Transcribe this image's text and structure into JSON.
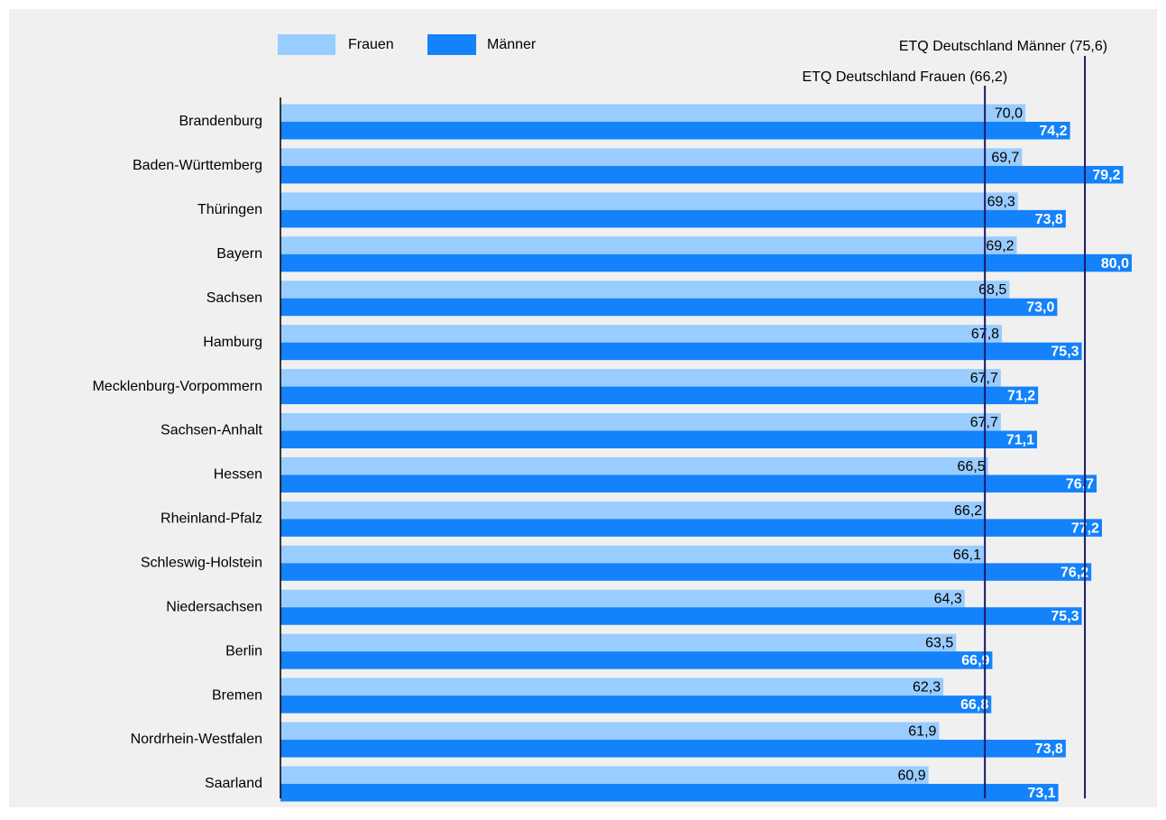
{
  "chart_data": {
    "type": "bar",
    "orientation": "horizontal",
    "categories": [
      "Brandenburg",
      "Baden-Württemberg",
      "Thüringen",
      "Bayern",
      "Sachsen",
      "Hamburg",
      "Mecklenburg-Vorpommern",
      "Sachsen-Anhalt",
      "Hessen",
      "Rheinland-Pfalz",
      "Schleswig-Holstein",
      "Niedersachsen",
      "Berlin",
      "Bremen",
      "Nordrhein-Westfalen",
      "Saarland"
    ],
    "series": [
      {
        "name": "Frauen",
        "color": "#99ccff",
        "values": [
          70.0,
          69.7,
          69.3,
          69.2,
          68.5,
          67.8,
          67.7,
          67.7,
          66.5,
          66.2,
          66.1,
          64.3,
          63.5,
          62.3,
          61.9,
          60.9
        ],
        "value_labels": [
          "70,0",
          "69,7",
          "69,3",
          "69,2",
          "68,5",
          "67,8",
          "67,7",
          "67,7",
          "66,5",
          "66,2",
          "66,1",
          "64,3",
          "63,5",
          "62,3",
          "61,9",
          "60,9"
        ]
      },
      {
        "name": "Männer",
        "color": "#1482fa",
        "values": [
          74.2,
          79.2,
          73.8,
          80.0,
          73.0,
          75.3,
          71.2,
          71.1,
          76.7,
          77.2,
          76.2,
          75.3,
          66.9,
          66.8,
          73.8,
          73.1
        ],
        "value_labels": [
          "74,2",
          "79,2",
          "73,8",
          "80,0",
          "73,0",
          "75,3",
          "71,2",
          "71,1",
          "76,7",
          "77,2",
          "76,2",
          "75,3",
          "66,9",
          "66,8",
          "73,8",
          "73,1"
        ]
      }
    ],
    "reference_lines": [
      {
        "label": "ETQ Deutschland Männer (75,6)",
        "value": 75.6,
        "color": "#1a1a66"
      },
      {
        "label": "ETQ Deutschland Frauen (66,2)",
        "value": 66.2,
        "color": "#1a1a66"
      }
    ],
    "xlim": [
      0,
      82
    ]
  }
}
